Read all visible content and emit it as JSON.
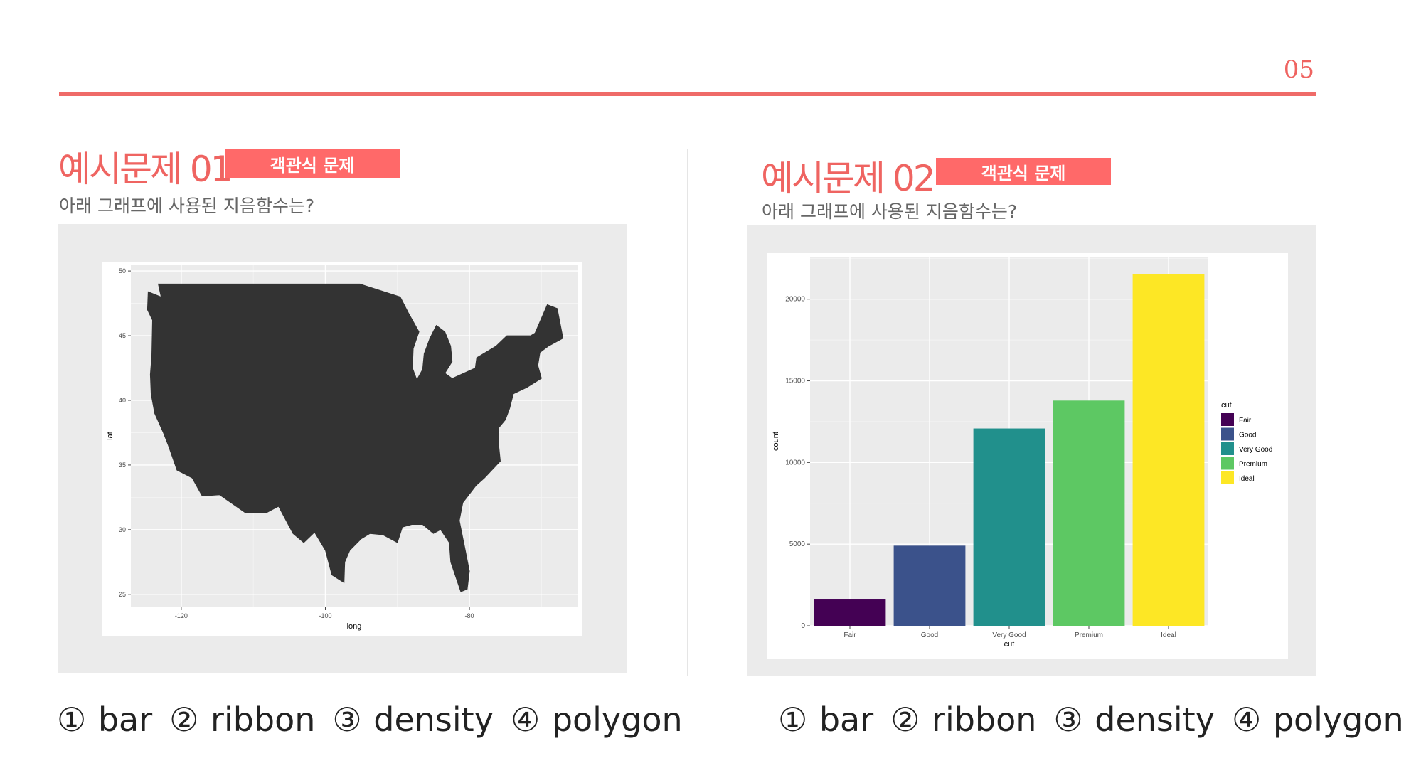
{
  "page": {
    "number": "05",
    "accent": "#ef6461"
  },
  "example1": {
    "title": "예시문제 01",
    "badge": "객관식 문제",
    "question": "아래 그래프에 사용된 지음함수는?",
    "answers": [
      "① bar",
      "② ribbon",
      "③ density",
      "④ polygon"
    ]
  },
  "example2": {
    "title": "예시문제 02",
    "badge": "객관식 문제",
    "question": "아래 그래프에 사용된 지음함수는?",
    "answers": [
      "① bar",
      "② ribbon",
      "③ density",
      "④ polygon"
    ]
  },
  "chart_data": [
    {
      "type": "map",
      "xlabel": "long",
      "ylabel": "lat",
      "xlim": [
        -127,
        -65
      ],
      "ylim": [
        24,
        50.5
      ],
      "xticks": [
        -120,
        -100,
        -80
      ],
      "yticks": [
        25,
        30,
        35,
        40,
        45,
        50
      ],
      "fill": "#333333",
      "grid": true,
      "outline": [
        [
          -124.6,
          48.4
        ],
        [
          -124.7,
          47.0
        ],
        [
          -124.0,
          46.2
        ],
        [
          -124.1,
          43.5
        ],
        [
          -124.3,
          42.0
        ],
        [
          -124.2,
          40.5
        ],
        [
          -123.7,
          39.0
        ],
        [
          -122.5,
          37.5
        ],
        [
          -121.8,
          36.5
        ],
        [
          -120.6,
          34.6
        ],
        [
          -118.5,
          34.0
        ],
        [
          -117.1,
          32.6
        ],
        [
          -114.7,
          32.7
        ],
        [
          -111.1,
          31.3
        ],
        [
          -108.2,
          31.3
        ],
        [
          -106.5,
          31.8
        ],
        [
          -104.5,
          29.7
        ],
        [
          -103.0,
          29.0
        ],
        [
          -101.5,
          29.8
        ],
        [
          -100.0,
          28.4
        ],
        [
          -99.1,
          26.5
        ],
        [
          -97.4,
          25.9
        ],
        [
          -97.3,
          27.5
        ],
        [
          -96.6,
          28.4
        ],
        [
          -95.0,
          29.3
        ],
        [
          -93.8,
          29.7
        ],
        [
          -92.0,
          29.6
        ],
        [
          -90.0,
          29.0
        ],
        [
          -89.3,
          30.2
        ],
        [
          -88.0,
          30.4
        ],
        [
          -86.5,
          30.4
        ],
        [
          -85.0,
          29.7
        ],
        [
          -84.0,
          30.0
        ],
        [
          -82.8,
          29.0
        ],
        [
          -82.6,
          27.5
        ],
        [
          -81.2,
          25.2
        ],
        [
          -80.3,
          25.4
        ],
        [
          -80.0,
          26.8
        ],
        [
          -80.6,
          28.5
        ],
        [
          -81.4,
          30.7
        ],
        [
          -80.9,
          32.1
        ],
        [
          -79.1,
          33.4
        ],
        [
          -77.9,
          34.0
        ],
        [
          -75.7,
          35.3
        ],
        [
          -76.0,
          36.9
        ],
        [
          -75.9,
          37.9
        ],
        [
          -75.0,
          38.5
        ],
        [
          -74.4,
          39.4
        ],
        [
          -73.9,
          40.5
        ],
        [
          -72.0,
          41.0
        ],
        [
          -70.0,
          41.7
        ],
        [
          -70.5,
          42.7
        ],
        [
          -70.2,
          43.7
        ],
        [
          -69.0,
          44.2
        ],
        [
          -67.0,
          44.8
        ],
        [
          -67.8,
          47.1
        ],
        [
          -69.2,
          47.4
        ],
        [
          -70.9,
          45.2
        ],
        [
          -71.5,
          45.0
        ],
        [
          -74.8,
          45.0
        ],
        [
          -76.3,
          44.2
        ],
        [
          -79.0,
          43.3
        ],
        [
          -79.2,
          42.5
        ],
        [
          -82.4,
          41.7
        ],
        [
          -83.4,
          42.1
        ],
        [
          -82.4,
          43.0
        ],
        [
          -82.6,
          44.2
        ],
        [
          -83.4,
          45.3
        ],
        [
          -84.6,
          45.8
        ],
        [
          -85.5,
          44.8
        ],
        [
          -86.3,
          43.6
        ],
        [
          -86.5,
          42.4
        ],
        [
          -87.3,
          41.6
        ],
        [
          -87.9,
          42.5
        ],
        [
          -87.8,
          44.0
        ],
        [
          -87.0,
          45.3
        ],
        [
          -87.6,
          45.9
        ],
        [
          -88.5,
          46.8
        ],
        [
          -89.6,
          48.0
        ],
        [
          -95.2,
          49.0
        ],
        [
          -123.2,
          49.0
        ],
        [
          -122.8,
          48.0
        ],
        [
          -124.6,
          48.4
        ]
      ]
    },
    {
      "type": "bar",
      "categories": [
        "Fair",
        "Good",
        "Very Good",
        "Premium",
        "Ideal"
      ],
      "values": [
        1610,
        4906,
        12082,
        13791,
        21551
      ],
      "colors": [
        "#440154",
        "#3b528b",
        "#21908c",
        "#5dc863",
        "#fde725"
      ],
      "xlabel": "cut",
      "ylabel": "count",
      "ylim": [
        0,
        22600
      ],
      "yticks": [
        0,
        5000,
        10000,
        15000,
        20000
      ],
      "legend": {
        "title": "cut",
        "position": "right"
      },
      "grid": true
    }
  ]
}
